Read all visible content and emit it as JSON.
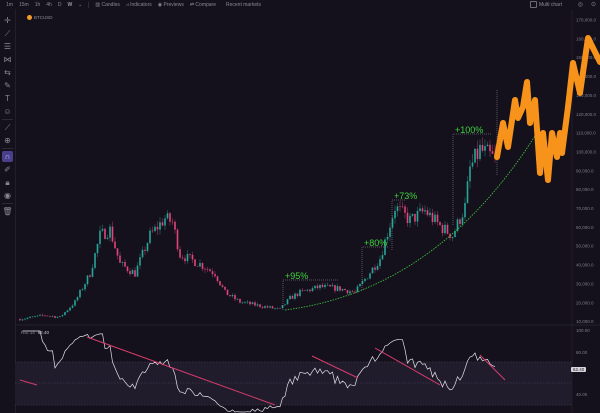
{
  "topbar": {
    "timeframes": [
      "1m",
      "15m",
      "1h",
      "4h",
      "D",
      "W"
    ],
    "chevron": "chevron-down-icon",
    "candles": "Candles",
    "indicators": "Indicators",
    "previews": "Previews",
    "compare": "Compare",
    "recent": "Recent markets",
    "multi_chart": "Multi chart"
  },
  "symbol": "BTCUSD",
  "toolbar": [
    "crosshair-icon",
    "trendline-icon",
    "fib-icon",
    "pattern-icon",
    "measure-icon",
    "brush-icon",
    "text-icon",
    "emoji-icon",
    "ruler-icon",
    "zoom-icon",
    "magnet-icon",
    "drawing-mode-icon",
    "lock-icon",
    "eye-icon",
    "trash-icon"
  ],
  "price_axis": [
    "170,000.0",
    "160,000.0",
    "150,000.0",
    "140,000.0",
    "130,000.0",
    "120,000.0",
    "110,000.0",
    "100,000.0",
    "90,000.0",
    "80,000.0",
    "70,000.0",
    "60,000.0",
    "50,000.0",
    "40,000.0",
    "30,000.0",
    "20,000.0",
    "10,000.0"
  ],
  "annotations": {
    "gain1": "+95%",
    "gain2": "+80%",
    "gain3": "+73%",
    "gain4": "+100%"
  },
  "rsi": {
    "label": "RSI 14",
    "value": "62.40",
    "axis": [
      "100.00",
      "80.00",
      "40.00"
    ]
  },
  "colors": {
    "up": "#26a69a",
    "down": "#e0457b",
    "projection": "#f7931a",
    "trend": "#3ecf3e",
    "rsi_trend": "#d63c6b",
    "background": "#15111c"
  },
  "chart_data": {
    "type": "candlestick",
    "price_anchors": [
      [
        0,
        11000
      ],
      [
        10,
        13000
      ],
      [
        16,
        12000
      ],
      [
        22,
        20000
      ],
      [
        28,
        35000
      ],
      [
        32,
        55000
      ],
      [
        36,
        58000
      ],
      [
        40,
        40000
      ],
      [
        46,
        35000
      ],
      [
        52,
        55000
      ],
      [
        58,
        64000
      ],
      [
        61,
        62000
      ],
      [
        64,
        45000
      ],
      [
        72,
        40000
      ],
      [
        78,
        35000
      ],
      [
        82,
        25000
      ],
      [
        88,
        20000
      ],
      [
        96,
        18000
      ],
      [
        104,
        16000
      ],
      [
        108,
        22000
      ],
      [
        112,
        25000
      ],
      [
        120,
        28000
      ],
      [
        128,
        27000
      ],
      [
        134,
        25000
      ],
      [
        138,
        32000
      ],
      [
        144,
        43000
      ],
      [
        150,
        70000
      ],
      [
        156,
        63000
      ],
      [
        162,
        68000
      ],
      [
        168,
        60000
      ],
      [
        173,
        55000
      ],
      [
        178,
        70000
      ],
      [
        180,
        90000
      ],
      [
        184,
        100000
      ],
      [
        190,
        95000
      ]
    ]
  }
}
